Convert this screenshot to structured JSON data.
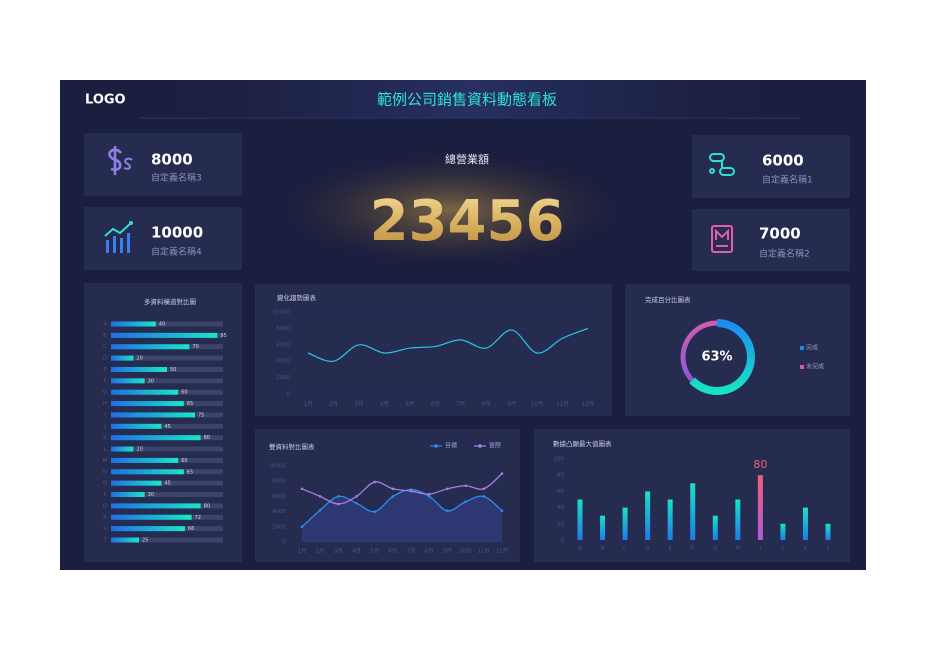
{
  "header": {
    "logo": "LOGO",
    "title": "範例公司銷售資料動態看板"
  },
  "kpis": [
    {
      "value": 8000,
      "label": "自定義名稱3"
    },
    {
      "value": 10000,
      "label": "自定義名稱4"
    },
    {
      "value": 6000,
      "label": "自定義名稱1"
    },
    {
      "value": 7000,
      "label": "自定義名稱2"
    }
  ],
  "total": {
    "label": "總營業額",
    "value": 23456
  },
  "chart_data": [
    {
      "type": "hbar",
      "title": "多資料橫道對比圖",
      "categories": [
        "A",
        "B",
        "C",
        "D",
        "E",
        "F",
        "G",
        "H",
        "I",
        "J",
        "K",
        "L",
        "M",
        "N",
        "O",
        "P",
        "Q",
        "R",
        "S",
        "T"
      ],
      "values": [
        40,
        95,
        70,
        20,
        50,
        30,
        60,
        65,
        75,
        45,
        80,
        20,
        60,
        65,
        45,
        30,
        80,
        72,
        66,
        25
      ],
      "xlim": [
        0,
        100
      ],
      "colors": [
        "#1f6fe6",
        "#18e6c8"
      ],
      "track_color": "#3d4469"
    },
    {
      "type": "line",
      "title": "變化趨勢圖表",
      "categories": [
        "1月",
        "2月",
        "3月",
        "4月",
        "5月",
        "6月",
        "7月",
        "8月",
        "9月",
        "10月",
        "11月",
        "12月"
      ],
      "values": [
        5000,
        4000,
        6000,
        5000,
        5600,
        5800,
        6600,
        5600,
        7800,
        5000,
        6800,
        8000
      ],
      "color": "#27c6e8",
      "ylim": [
        0,
        10000
      ],
      "yticks": [
        0,
        2000,
        4000,
        6000,
        8000,
        10000
      ]
    },
    {
      "type": "donut",
      "title": "完成百分比圖表",
      "categories": [
        "完成",
        "未完成"
      ],
      "values": [
        63,
        37
      ],
      "value_labels": [
        "63%",
        null
      ],
      "colors": [
        "#1a8cf0",
        "#d25bb0"
      ]
    },
    {
      "type": "dual",
      "title": "雙資料對比圖表",
      "categories": [
        "1月",
        "2月",
        "3月",
        "4月",
        "5月",
        "6月",
        "7月",
        "8月",
        "9月",
        "10月",
        "11月",
        "12月"
      ],
      "series": [
        {
          "name": "目標",
          "color": "#2a8cf0",
          "values": [
            2000,
            4200,
            6000,
            5100,
            4000,
            6000,
            6900,
            6000,
            4100,
            5300,
            6000,
            4100
          ]
        },
        {
          "name": "實際",
          "color": "#a57fe0",
          "values": [
            7000,
            6000,
            5000,
            6000,
            7900,
            7000,
            6700,
            6300,
            7000,
            7400,
            7000,
            9000
          ]
        }
      ],
      "ylim": [
        0,
        10000
      ],
      "yticks": [
        0,
        2000,
        4000,
        6000,
        8000,
        10000
      ]
    },
    {
      "type": "bar",
      "title": "數據凸顯最大值圖表",
      "categories": [
        "A",
        "B",
        "C",
        "D",
        "E",
        "F",
        "G",
        "H",
        "I",
        "J",
        "K",
        "L"
      ],
      "values": [
        50,
        30,
        40,
        60,
        50,
        70,
        30,
        50,
        80,
        20,
        40,
        20
      ],
      "ylim": [
        0,
        100
      ],
      "yticks": [
        0,
        20,
        40,
        60,
        80,
        100
      ],
      "colors": [
        "#19e3c6",
        "#1f7ae8"
      ],
      "highlight_colors": [
        "#f0607a",
        "#b05cd6"
      ]
    }
  ]
}
